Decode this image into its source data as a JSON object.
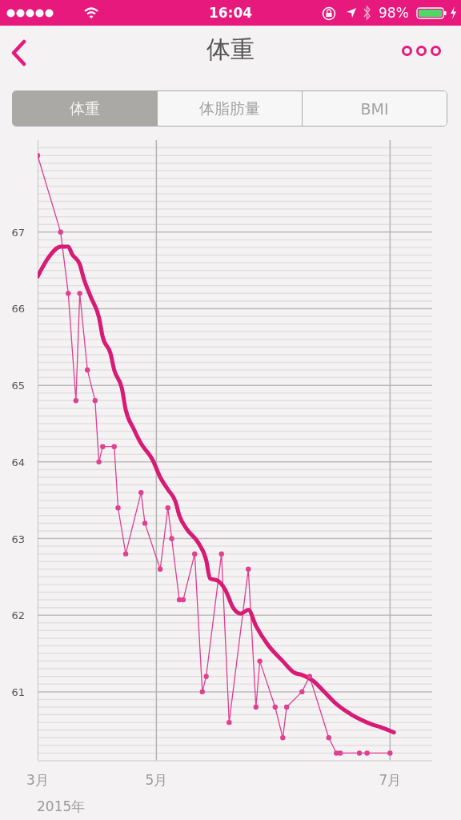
{
  "chart_data": {
    "type": "line",
    "title": "体重",
    "annotations": [
      "2015年",
      "16:04",
      "98%",
      "体重",
      "体脂肪量",
      "BMI"
    ],
    "xlim": [
      "2015-03-31",
      "2015-07-12"
    ],
    "xticks": [
      {
        "value": "2015-03-31",
        "label": "3月"
      },
      {
        "value": "2015-05-01",
        "label": "5月"
      },
      {
        "value": "2015-07-01",
        "label": "7月"
      }
    ],
    "ylim": [
      60.1,
      68.2
    ],
    "yticks": [
      {
        "value": 60.2,
        "label": null
      },
      {
        "value": 60.3,
        "label": null
      },
      {
        "value": 60.4,
        "label": null
      },
      {
        "value": 60.5,
        "label": null
      },
      {
        "value": 60.6,
        "label": null
      },
      {
        "value": 60.7,
        "label": null
      },
      {
        "value": 60.8,
        "label": null
      },
      {
        "value": 60.9,
        "label": null
      },
      61,
      {
        "value": 61.1,
        "label": null
      },
      {
        "value": 61.2,
        "label": null
      },
      {
        "value": 61.3,
        "label": null
      },
      {
        "value": 61.4,
        "label": null
      },
      {
        "value": 61.5,
        "label": null
      },
      {
        "value": 61.6,
        "label": null
      },
      {
        "value": 61.7,
        "label": null
      },
      {
        "value": 61.8,
        "label": null
      },
      {
        "value": 61.9,
        "label": null
      },
      62,
      {
        "value": 62.1,
        "label": null
      },
      {
        "value": 62.2,
        "label": null
      },
      {
        "value": 62.3,
        "label": null
      },
      {
        "value": 62.4,
        "label": null
      },
      {
        "value": 62.5,
        "label": null
      },
      {
        "value": 62.6,
        "label": null
      },
      {
        "value": 62.7,
        "label": null
      },
      {
        "value": 62.8,
        "label": null
      },
      {
        "value": 62.9,
        "label": null
      },
      63,
      {
        "value": 63.1,
        "label": null
      },
      {
        "value": 63.2,
        "label": null
      },
      {
        "value": 63.3,
        "label": null
      },
      {
        "value": 63.4,
        "label": null
      },
      {
        "value": 63.5,
        "label": null
      },
      {
        "value": 63.6,
        "label": null
      },
      {
        "value": 63.7,
        "label": null
      },
      {
        "value": 63.8,
        "label": null
      },
      {
        "value": 63.9,
        "label": null
      },
      64,
      {
        "value": 64.1,
        "label": null
      },
      {
        "value": 64.2,
        "label": null
      },
      {
        "value": 64.3,
        "label": null
      },
      {
        "value": 64.4,
        "label": null
      },
      {
        "value": 64.5,
        "label": null
      },
      {
        "value": 64.6,
        "label": null
      },
      {
        "value": 64.7,
        "label": null
      },
      {
        "value": 64.8,
        "label": null
      },
      {
        "value": 64.9,
        "label": null
      },
      65,
      {
        "value": 65.1,
        "label": null
      },
      {
        "value": 65.2,
        "label": null
      },
      {
        "value": 65.3,
        "label": null
      },
      {
        "value": 65.4,
        "label": null
      },
      {
        "value": 65.5,
        "label": null
      },
      {
        "value": 65.6,
        "label": null
      },
      {
        "value": 65.7,
        "label": null
      },
      {
        "value": 65.8,
        "label": null
      },
      {
        "value": 65.9,
        "label": null
      },
      66,
      {
        "value": 66.1,
        "label": null
      },
      {
        "value": 66.2,
        "label": null
      },
      {
        "value": 66.3,
        "label": null
      },
      {
        "value": 66.4,
        "label": null
      },
      {
        "value": 66.5,
        "label": null
      },
      {
        "value": 66.6,
        "label": null
      },
      {
        "value": 66.7,
        "label": null
      },
      {
        "value": 66.8,
        "label": null
      },
      {
        "value": 66.9,
        "label": null
      },
      67,
      {
        "value": 67.1,
        "label": null
      },
      {
        "value": 67.2,
        "label": null
      },
      {
        "value": 67.3,
        "label": null
      },
      {
        "value": 67.4,
        "label": null
      },
      {
        "value": 67.5,
        "label": null
      },
      {
        "value": 67.6,
        "label": null
      },
      {
        "value": 67.7,
        "label": null
      },
      {
        "value": 67.8,
        "label": null
      },
      {
        "value": 67.9,
        "label": null
      },
      {
        "value": 68.0,
        "label": null
      },
      {
        "value": 68.1,
        "label": null
      }
    ],
    "grid": true,
    "line_style": "solid",
    "series": [
      {
        "color": "#e0408f",
        "marker": "circle",
        "x": [
          "2015-03-31",
          "2015-04-06",
          "2015-04-08",
          "2015-04-10",
          "2015-04-11",
          "2015-04-13",
          "2015-04-15",
          "2015-04-16",
          "2015-04-17",
          "2015-04-20",
          "2015-04-21",
          "2015-04-23",
          "2015-04-27",
          "2015-04-28",
          "2015-05-02",
          "2015-05-04",
          "2015-05-05",
          "2015-05-07",
          "2015-05-08",
          "2015-05-11",
          "2015-05-13",
          "2015-05-14",
          "2015-05-18",
          "2015-05-20",
          "2015-05-25",
          "2015-05-27",
          "2015-05-28",
          "2015-06-01",
          "2015-06-03",
          "2015-06-04",
          "2015-06-08",
          "2015-06-10",
          "2015-06-15",
          "2015-06-17",
          "2015-06-18",
          "2015-06-23",
          "2015-06-25",
          "2015-07-01"
        ],
        "values": [
          68.0,
          67.0,
          66.2,
          64.8,
          66.2,
          65.2,
          64.8,
          64.0,
          64.2,
          64.2,
          63.4,
          62.8,
          63.6,
          63.2,
          62.6,
          63.4,
          63.0,
          62.2,
          62.2,
          62.8,
          61.0,
          61.2,
          62.8,
          60.6,
          62.6,
          60.8,
          61.4,
          60.8,
          60.4,
          60.8,
          61.0,
          61.2,
          60.4,
          60.2,
          60.2,
          60.2,
          60.2,
          60.2
        ]
      },
      {
        "color": "#d81b74",
        "marker": "none",
        "x": [
          "2015-03-31",
          "2015-04-03",
          "2015-04-06",
          "2015-04-08",
          "2015-04-09",
          "2015-04-11",
          "2015-04-12",
          "2015-04-14",
          "2015-04-16",
          "2015-04-17",
          "2015-04-19",
          "2015-04-20",
          "2015-04-22",
          "2015-04-23",
          "2015-04-25",
          "2015-04-27",
          "2015-04-30",
          "2015-05-02",
          "2015-05-04",
          "2015-05-06",
          "2015-05-07",
          "2015-05-09",
          "2015-05-12",
          "2015-05-14",
          "2015-05-15",
          "2015-05-17",
          "2015-05-19",
          "2015-05-21",
          "2015-05-23",
          "2015-05-25",
          "2015-05-27",
          "2015-05-30",
          "2015-06-03",
          "2015-06-06",
          "2015-06-08",
          "2015-06-11",
          "2015-06-14",
          "2015-06-17",
          "2015-06-21",
          "2015-06-26",
          "2015-06-29",
          "2015-07-02"
        ],
        "values": [
          66.42,
          66.68,
          66.81,
          66.81,
          66.71,
          66.58,
          66.4,
          66.14,
          65.89,
          65.63,
          65.42,
          65.2,
          64.96,
          64.68,
          64.44,
          64.24,
          64.03,
          63.8,
          63.64,
          63.48,
          63.3,
          63.12,
          62.94,
          62.72,
          62.48,
          62.45,
          62.33,
          62.1,
          62.02,
          62.07,
          61.86,
          61.62,
          61.4,
          61.25,
          61.22,
          61.14,
          60.99,
          60.84,
          60.7,
          60.58,
          60.53,
          60.47
        ]
      }
    ]
  }
}
